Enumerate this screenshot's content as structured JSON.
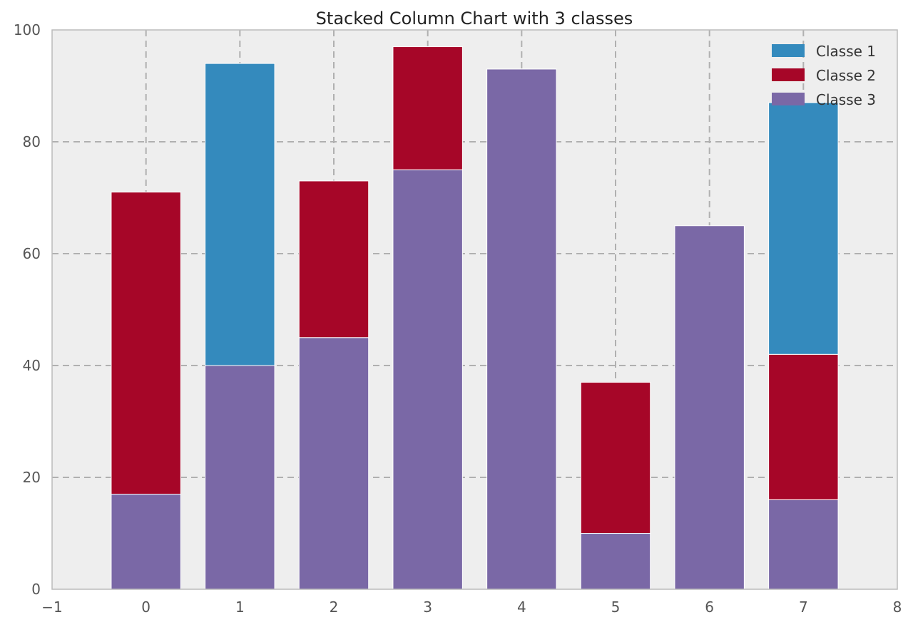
{
  "chart_data": {
    "type": "bar",
    "stacked": true,
    "title": "Stacked Column Chart with 3 classes",
    "xlabel": "",
    "ylabel": "",
    "x": [
      0,
      1,
      2,
      3,
      4,
      5,
      6,
      7
    ],
    "xlim": [
      -1,
      8
    ],
    "ylim": [
      0,
      100
    ],
    "xticks": [
      "−1",
      "0",
      "1",
      "2",
      "3",
      "4",
      "5",
      "6",
      "7",
      "8"
    ],
    "yticks": [
      "0",
      "20",
      "40",
      "60",
      "80",
      "100"
    ],
    "grid": true,
    "legend_position": "top-right",
    "stack_order": [
      "Classe 3",
      "Classe 2",
      "Classe 1"
    ],
    "series": [
      {
        "name": "Classe 1",
        "color": "#348abd",
        "values": [
          0,
          54,
          0,
          0,
          0,
          0,
          0,
          45
        ]
      },
      {
        "name": "Classe 2",
        "color": "#a60628",
        "values": [
          54,
          0,
          28,
          22,
          0,
          27,
          0,
          26
        ]
      },
      {
        "name": "Classe 3",
        "color": "#7a68a6",
        "values": [
          17,
          40,
          45,
          75,
          93,
          10,
          65,
          16
        ]
      }
    ]
  }
}
